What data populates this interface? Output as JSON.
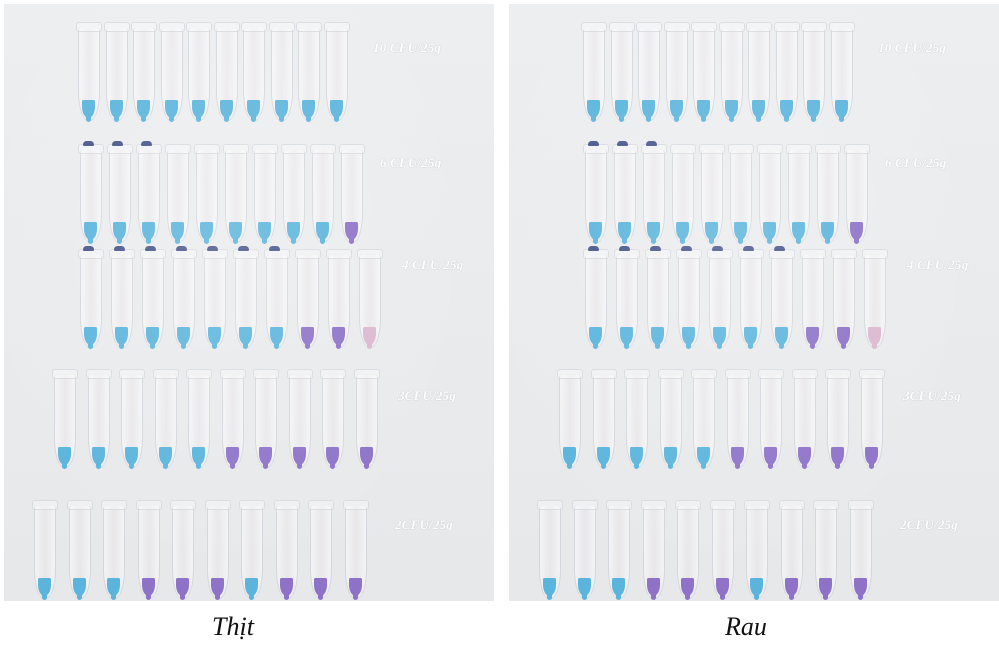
{
  "panels": [
    {
      "caption": "Thịt",
      "rows": [
        {
          "label": "10 CFU/25g",
          "colors": [
            "blue",
            "blue",
            "blue",
            "blue",
            "blue",
            "blue",
            "blue",
            "blue",
            "blue",
            "blue"
          ],
          "marked": []
        },
        {
          "label": "6 CFU/25g",
          "colors": [
            "blue",
            "blue",
            "blue",
            "blue",
            "blue",
            "blue",
            "blue",
            "blue",
            "blue",
            "purple"
          ],
          "marked": [
            0,
            1,
            2
          ]
        },
        {
          "label": "4 CFU/25g",
          "colors": [
            "blue",
            "blue",
            "blue",
            "blue",
            "blue",
            "blue",
            "blue",
            "purple",
            "purple",
            "pink"
          ],
          "marked": [
            0,
            1,
            2,
            3,
            4,
            5,
            6
          ]
        },
        {
          "label": "3CFU/25g",
          "colors": [
            "blue",
            "blue",
            "blue",
            "blue",
            "blue",
            "purple",
            "purple",
            "purple",
            "purple",
            "purple"
          ],
          "marked": []
        },
        {
          "label": "2CFU/25g",
          "colors": [
            "blue",
            "blue",
            "blue",
            "purple",
            "purple",
            "purple",
            "blue",
            "purple",
            "purple",
            "purple"
          ],
          "marked": []
        }
      ]
    },
    {
      "caption": "Rau",
      "rows": [
        {
          "label": "10 CFU/25g",
          "colors": [
            "blue",
            "blue",
            "blue",
            "blue",
            "blue",
            "blue",
            "blue",
            "blue",
            "blue",
            "blue"
          ],
          "marked": []
        },
        {
          "label": "6 CFU/25g",
          "colors": [
            "blue",
            "blue",
            "blue",
            "blue",
            "blue",
            "blue",
            "blue",
            "blue",
            "blue",
            "purple"
          ],
          "marked": [
            0,
            1,
            2
          ]
        },
        {
          "label": "4 CFU/25g",
          "colors": [
            "blue",
            "blue",
            "blue",
            "blue",
            "blue",
            "blue",
            "blue",
            "purple",
            "purple",
            "pink"
          ],
          "marked": [
            0,
            1,
            2,
            3,
            4,
            5,
            6
          ]
        },
        {
          "label": "3CFU/25g",
          "colors": [
            "blue",
            "blue",
            "blue",
            "blue",
            "blue",
            "purple",
            "purple",
            "purple",
            "purple",
            "purple"
          ],
          "marked": []
        },
        {
          "label": "2CFU/25g",
          "colors": [
            "blue",
            "blue",
            "blue",
            "purple",
            "purple",
            "purple",
            "blue",
            "purple",
            "purple",
            "purple"
          ],
          "marked": []
        }
      ]
    }
  ],
  "palette": {
    "blue": "#5ab4dc",
    "purple": "#8d72c8",
    "pink": "#dcb8d0"
  }
}
